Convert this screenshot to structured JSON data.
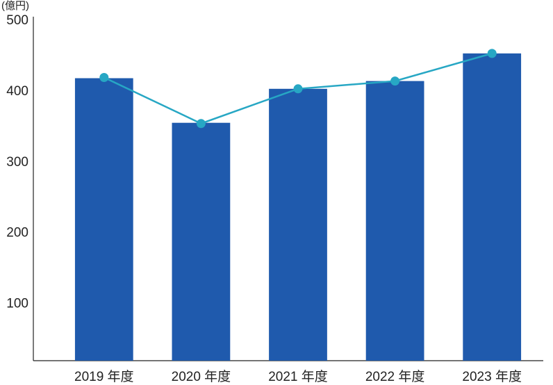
{
  "chart_data": {
    "type": "combo",
    "y_label": "(億円)",
    "categories": [
      "2019 年度",
      "2020 年度",
      "2021 年度",
      "2022 年度",
      "2023 年度"
    ],
    "series": [
      {
        "type": "bar",
        "color": "#1f5aad",
        "values": [
          419,
          356,
          404,
          415,
          454
        ]
      },
      {
        "type": "line",
        "color": "#27a7c4",
        "values": [
          420,
          355,
          404,
          415,
          454
        ]
      }
    ],
    "ylim": [
      20,
      500
    ],
    "yticks": [
      100,
      200,
      300,
      400,
      500
    ]
  }
}
